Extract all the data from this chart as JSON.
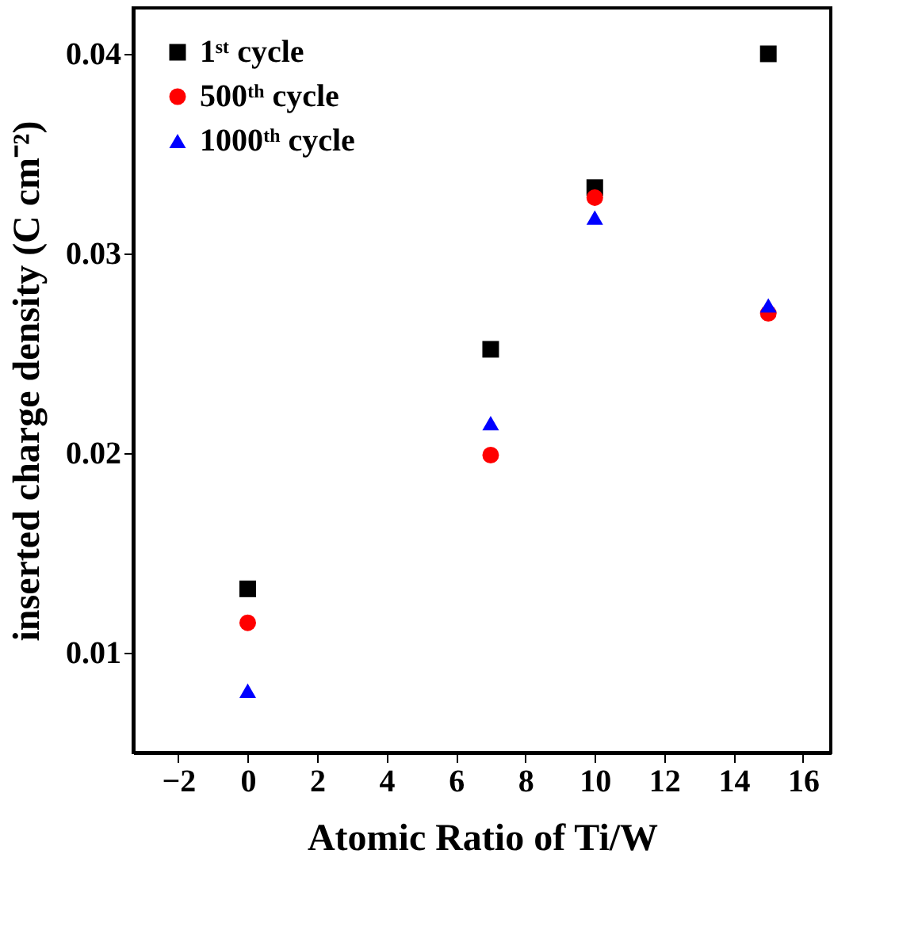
{
  "chart_data": {
    "type": "scatter",
    "xlabel": "Atomic Ratio of Ti/W",
    "ylabel": "inserted charge density (C cm⁻²)",
    "x": [
      0,
      7,
      10,
      15
    ],
    "series": [
      {
        "name": "1ˢᵗ cycle",
        "color": "#000000",
        "marker": "square",
        "values": [
          0.0132,
          0.0252,
          0.0333,
          0.04
        ]
      },
      {
        "name": "500ᵗʰ cycle",
        "color": "#ff0000",
        "marker": "circle",
        "values": [
          0.0115,
          0.0199,
          0.0328,
          0.027
        ]
      },
      {
        "name": "1000ᵗʰ cycle",
        "color": "#0000ff",
        "marker": "triangle",
        "values": [
          0.0081,
          0.0215,
          0.0318,
          0.0274
        ]
      }
    ],
    "xlim": [
      -3.3,
      16.8
    ],
    "xticks": [
      -2,
      0,
      2,
      4,
      6,
      8,
      10,
      12,
      14,
      16
    ],
    "ylim": [
      0.005,
      0.0423
    ],
    "yticks": [
      0.01,
      0.02,
      0.03,
      0.04
    ],
    "grid": false,
    "legend": "top left"
  }
}
